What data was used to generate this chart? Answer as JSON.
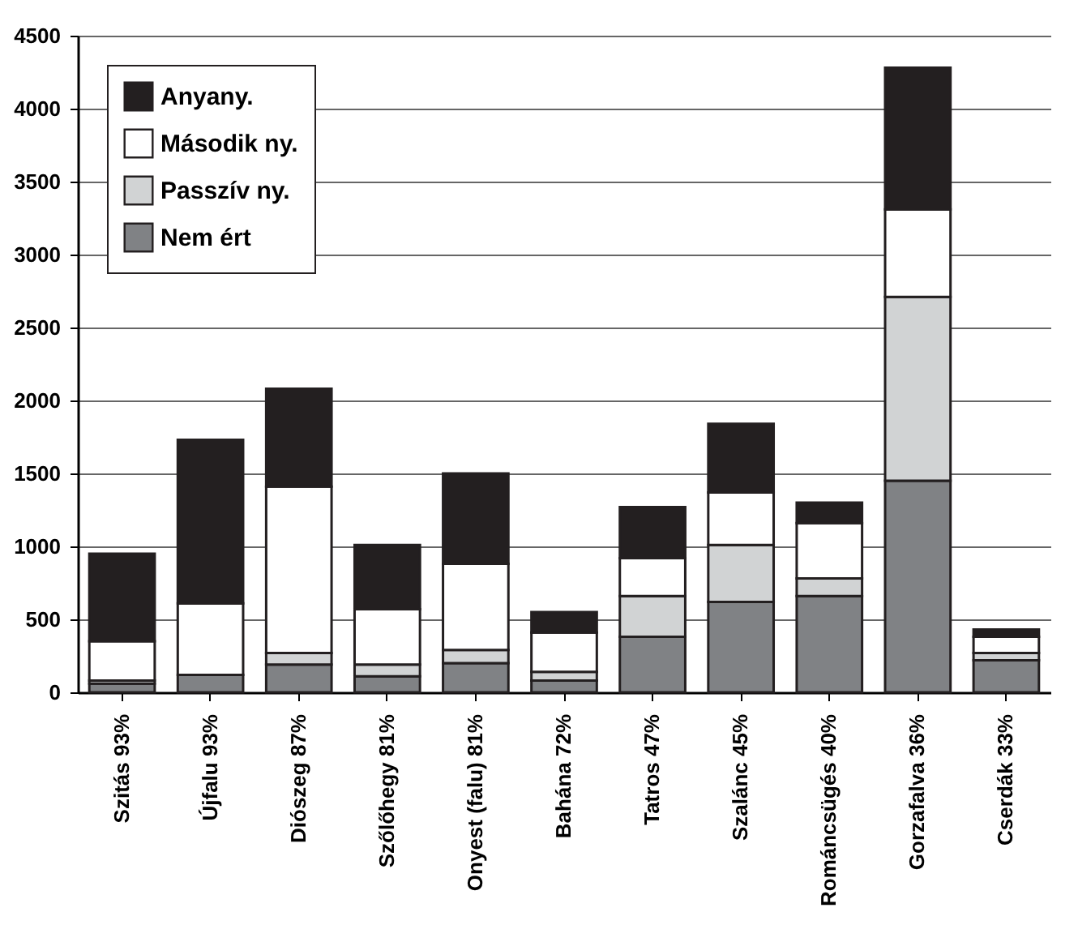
{
  "chart_data": {
    "type": "bar",
    "stacked": true,
    "categories": [
      "Szitás 93%",
      "Újfalu 93%",
      "Diószeg 87%",
      "Szőlőhegy 81%",
      "Onyest (falu) 81%",
      "Bahána 72%",
      "Tatros 47%",
      "Szalánc 45%",
      "Románcsügés 40%",
      "Gorzafalva 36%",
      "Cserdák 33%"
    ],
    "series": [
      {
        "name": "Nem ért",
        "color": "#808285",
        "values": [
          60,
          120,
          190,
          110,
          200,
          80,
          380,
          620,
          660,
          1450,
          220
        ]
      },
      {
        "name": "Passzív ny.",
        "color": "#d1d3d4",
        "values": [
          20,
          0,
          80,
          80,
          90,
          60,
          280,
          390,
          120,
          1260,
          50
        ]
      },
      {
        "name": "Második ny.",
        "color": "#ffffff",
        "values": [
          270,
          490,
          1140,
          380,
          590,
          270,
          260,
          360,
          380,
          600,
          110
        ]
      },
      {
        "name": "Anyany.",
        "color": "#231f20",
        "values": [
          600,
          1120,
          670,
          440,
          620,
          140,
          350,
          470,
          140,
          970,
          50
        ]
      }
    ],
    "ylim": [
      0,
      4500
    ],
    "yticks": [
      0,
      500,
      1000,
      1500,
      2000,
      2500,
      3000,
      3500,
      4000,
      4500
    ],
    "grid": "y",
    "legend": "top left"
  }
}
